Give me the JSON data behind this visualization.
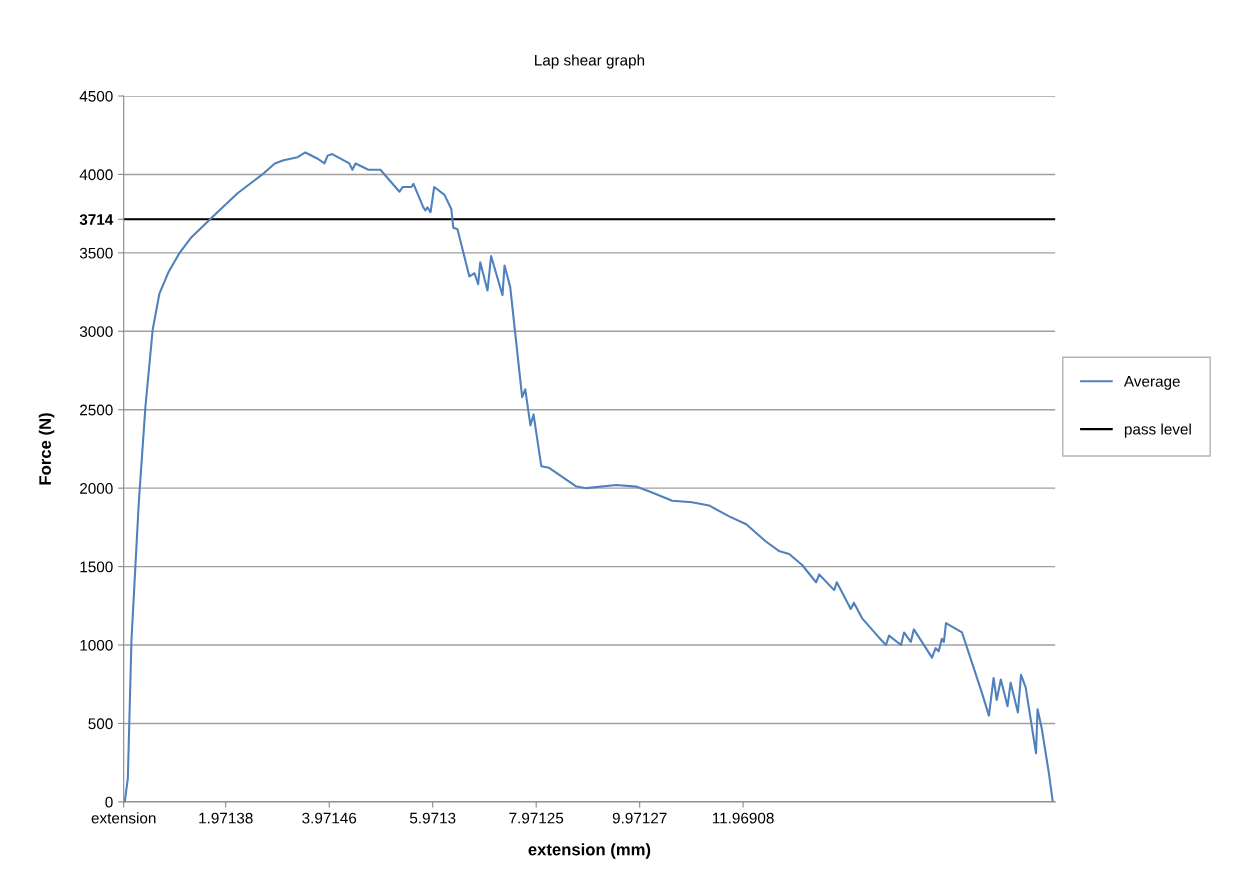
{
  "chart_data": {
    "type": "line",
    "title": "Lap shear graph",
    "xlabel": "extension (mm)",
    "ylabel": "Force (N)",
    "xlim": [
      0,
      18
    ],
    "xticks": [
      {
        "value": 0,
        "label": "extension"
      },
      1.97138,
      3.97146,
      5.9713,
      7.97125,
      9.97127,
      11.96908
    ],
    "ylim": [
      0,
      4500
    ],
    "yticks": [
      0,
      500,
      1000,
      1500,
      2000,
      2500,
      3000,
      {
        "value": 3714,
        "label": "3714"
      },
      3500,
      4000,
      4500
    ],
    "grid": "y",
    "legend": "right",
    "marker": "none",
    "line_style": "solid",
    "ref_lines": [
      {
        "axis": "y",
        "value": 3714,
        "label": "pass level",
        "color": "#000000",
        "line_style": "solid"
      }
    ],
    "series": [
      {
        "name": "Average",
        "color": "#4f81bd",
        "x": [
          0.02,
          0.08,
          0.15,
          0.29,
          0.42,
          0.56,
          0.69,
          0.87,
          1.08,
          1.31,
          1.72,
          2.2,
          2.68,
          2.92,
          3.09,
          3.36,
          3.51,
          3.75,
          3.88,
          3.94,
          4.03,
          4.36,
          4.42,
          4.48,
          4.73,
          4.96,
          5.33,
          5.39,
          5.56,
          5.6,
          5.79,
          5.83,
          5.87,
          5.93,
          6.0,
          6.2,
          6.33,
          6.37,
          6.45,
          6.68,
          6.78,
          6.85,
          6.89,
          7.03,
          7.1,
          7.32,
          7.36,
          7.47,
          7.7,
          7.76,
          7.86,
          7.92,
          8.07,
          8.22,
          8.75,
          8.94,
          9.52,
          9.9,
          10.15,
          10.6,
          10.98,
          11.31,
          11.7,
          12.03,
          12.41,
          12.66,
          12.86,
          13.11,
          13.38,
          13.44,
          13.73,
          13.78,
          14.05,
          14.11,
          14.27,
          14.59,
          14.73,
          14.79,
          15.02,
          15.08,
          15.21,
          15.27,
          15.62,
          15.69,
          15.75,
          15.81,
          15.85,
          15.89,
          16.2,
          16.58,
          16.72,
          16.81,
          16.87,
          16.95,
          17.08,
          17.14,
          17.28,
          17.34,
          17.43,
          17.63,
          17.66,
          17.74,
          17.88,
          17.95
        ],
        "values": [
          0,
          150,
          1030,
          1900,
          2520,
          3010,
          3240,
          3380,
          3500,
          3600,
          3730,
          3880,
          4000,
          4070,
          4090,
          4110,
          4140,
          4100,
          4070,
          4120,
          4130,
          4070,
          4030,
          4070,
          4030,
          4030,
          3890,
          3920,
          3920,
          3940,
          3790,
          3770,
          3790,
          3760,
          3920,
          3870,
          3780,
          3660,
          3650,
          3350,
          3370,
          3300,
          3440,
          3260,
          3480,
          3230,
          3420,
          3280,
          2580,
          2630,
          2400,
          2470,
          2140,
          2130,
          2010,
          2000,
          2020,
          2010,
          1980,
          1920,
          1910,
          1890,
          1820,
          1770,
          1660,
          1600,
          1580,
          1510,
          1400,
          1450,
          1350,
          1400,
          1230,
          1270,
          1170,
          1050,
          1000,
          1060,
          1000,
          1080,
          1020,
          1100,
          920,
          980,
          960,
          1040,
          1020,
          1140,
          1080,
          700,
          550,
          790,
          650,
          780,
          610,
          760,
          570,
          810,
          730,
          310,
          590,
          470,
          180,
          10
        ]
      }
    ]
  }
}
